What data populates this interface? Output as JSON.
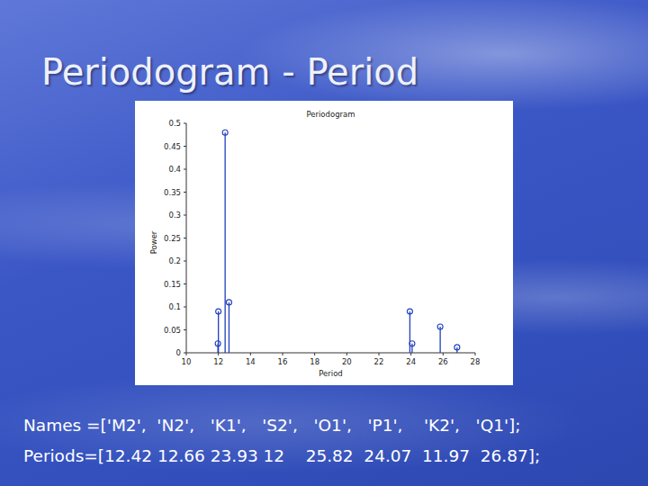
{
  "slide": {
    "title": "Periodogram - Period",
    "lines": [
      "Names =['M2',  'N2',   'K1',   'S2',   'O1',   'P1',    'K2',   'Q1'];",
      "Periods=[12.42 12.66 23.93 12    25.82  24.07  11.97  26.87];"
    ]
  },
  "chart_data": {
    "type": "stem",
    "title": "Periodogram",
    "x_label": "Period",
    "y_label": "Power",
    "x": [
      12.42,
      12.66,
      23.93,
      12,
      25.82,
      24.07,
      11.97,
      26.87
    ],
    "values": [
      0.48,
      0.11,
      0.09,
      0.09,
      0.057,
      0.02,
      0.02,
      0.012
    ],
    "color": "#1f3fbf",
    "marker": "circle",
    "xlim": [
      10,
      28
    ],
    "xticks": [
      10,
      12,
      14,
      16,
      18,
      20,
      22,
      24,
      26,
      28
    ],
    "ylim": [
      0,
      0.5
    ],
    "yticks": [
      0,
      0.05,
      0.1,
      0.15,
      0.2,
      0.25,
      0.3,
      0.35,
      0.4,
      0.45,
      0.5
    ],
    "grid": false
  }
}
